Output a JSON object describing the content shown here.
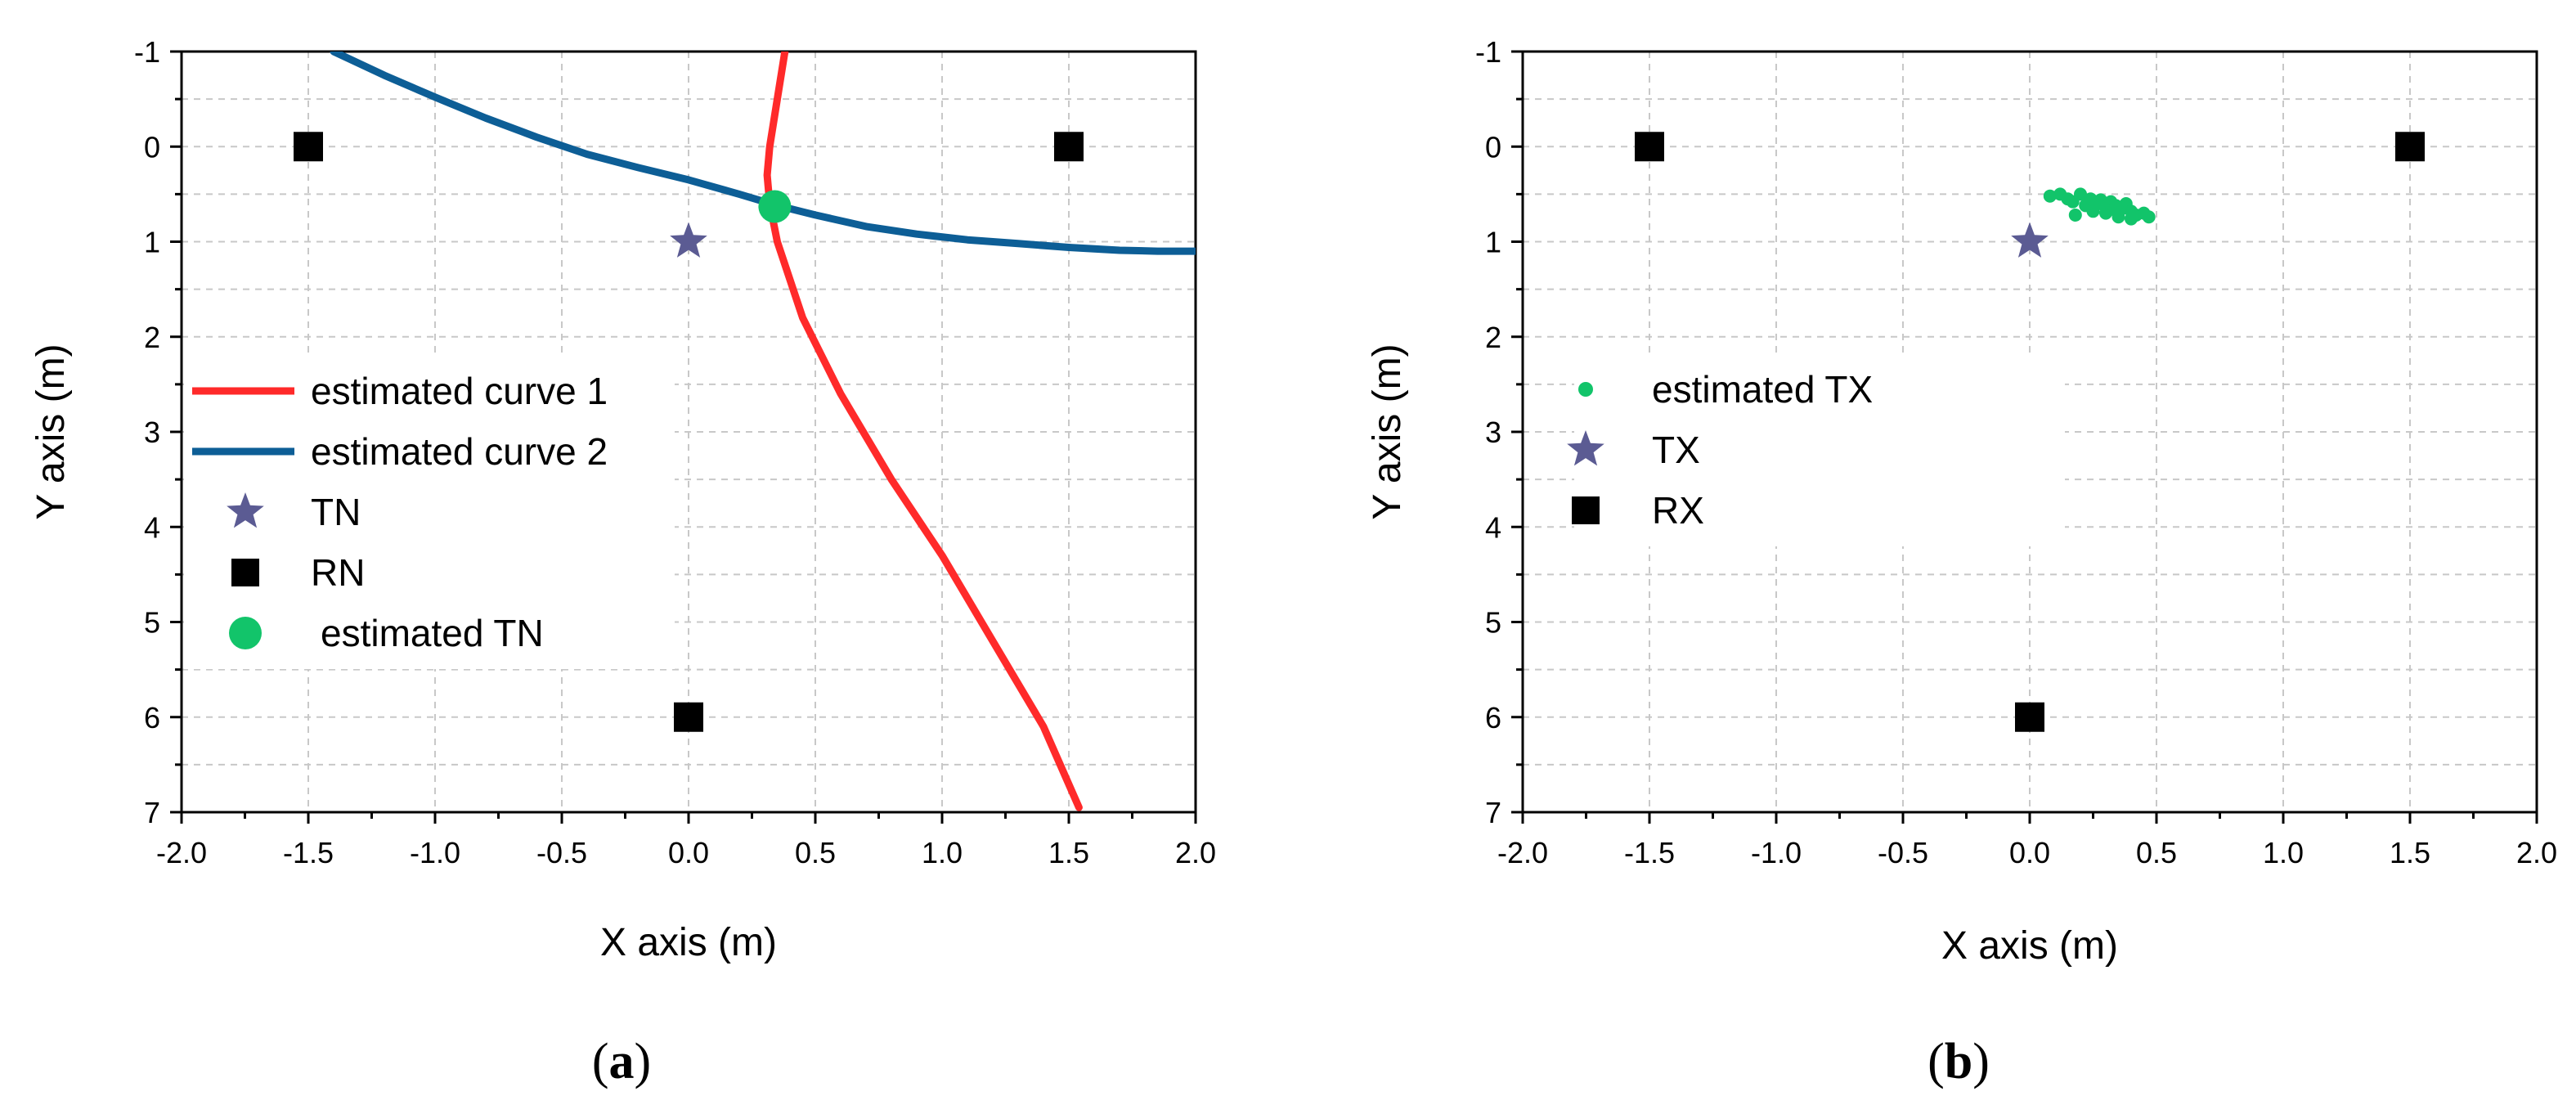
{
  "chart_data": [
    {
      "type": "line",
      "panel_label": "a",
      "xlabel": "X axis (m)",
      "ylabel": "Y axis (m)",
      "xlim": [
        -2.0,
        2.0
      ],
      "ylim": [
        -1,
        7
      ],
      "y_inverted": true,
      "x_ticks": [
        "-2.0",
        "-1.5",
        "-1.0",
        "-0.5",
        "0.0",
        "0.5",
        "1.0",
        "1.5",
        "2.0"
      ],
      "y_ticks": [
        "-1",
        "0",
        "1",
        "2",
        "3",
        "4",
        "5",
        "6",
        "7"
      ],
      "grid": true,
      "legend_position": "left",
      "series": [
        {
          "name": "estimated curve 1",
          "kind": "line",
          "color": "#ff2a2a",
          "x": [
            0.38,
            0.35,
            0.32,
            0.31,
            0.32,
            0.35,
            0.45,
            0.6,
            0.8,
            1.0,
            1.2,
            1.4,
            1.54
          ],
          "y": [
            -1.0,
            -0.5,
            0.0,
            0.3,
            0.6,
            1.0,
            1.8,
            2.6,
            3.5,
            4.3,
            5.2,
            6.1,
            6.95
          ]
        },
        {
          "name": "estimated curve 2",
          "kind": "line",
          "color": "#0d5e96",
          "x": [
            -1.4,
            -1.2,
            -1.0,
            -0.8,
            -0.6,
            -0.4,
            -0.2,
            0.0,
            0.2,
            0.35,
            0.5,
            0.7,
            0.9,
            1.1,
            1.3,
            1.5,
            1.7,
            1.85,
            2.0
          ],
          "y": [
            -1.0,
            -0.75,
            -0.52,
            -0.3,
            -0.1,
            0.08,
            0.22,
            0.35,
            0.5,
            0.62,
            0.72,
            0.84,
            0.92,
            0.98,
            1.02,
            1.06,
            1.09,
            1.1,
            1.1
          ]
        },
        {
          "name": "TN",
          "kind": "star",
          "color": "#5b5b93",
          "x": [
            0.0
          ],
          "y": [
            1.0
          ]
        },
        {
          "name": "RN",
          "kind": "square",
          "color": "#000000",
          "x": [
            -1.5,
            1.5,
            0.0
          ],
          "y": [
            0.0,
            0.0,
            6.0
          ]
        },
        {
          "name": "estimated TN",
          "kind": "circle",
          "color": "#12c46a",
          "x": [
            0.34
          ],
          "y": [
            0.63
          ]
        }
      ]
    },
    {
      "type": "scatter",
      "panel_label": "b",
      "xlabel": "X axis (m)",
      "ylabel": "Y axis (m)",
      "xlim": [
        -2.0,
        2.0
      ],
      "ylim": [
        -1,
        7
      ],
      "y_inverted": true,
      "x_ticks": [
        "-2.0",
        "-1.5",
        "-1.0",
        "-0.5",
        "0.0",
        "0.5",
        "1.0",
        "1.5",
        "2.0"
      ],
      "y_ticks": [
        "-1",
        "0",
        "1",
        "2",
        "3",
        "4",
        "5",
        "6",
        "7"
      ],
      "grid": true,
      "legend_position": "left",
      "series": [
        {
          "name": "estimated TX",
          "kind": "dot",
          "color": "#12c46a",
          "x": [
            0.08,
            0.12,
            0.15,
            0.17,
            0.2,
            0.22,
            0.24,
            0.26,
            0.28,
            0.3,
            0.32,
            0.34,
            0.36,
            0.38,
            0.4,
            0.42,
            0.45,
            0.47,
            0.18,
            0.25,
            0.3,
            0.35,
            0.4,
            0.28,
            0.33
          ],
          "y": [
            0.52,
            0.5,
            0.55,
            0.58,
            0.5,
            0.62,
            0.55,
            0.6,
            0.56,
            0.64,
            0.58,
            0.62,
            0.66,
            0.6,
            0.68,
            0.72,
            0.7,
            0.74,
            0.72,
            0.68,
            0.7,
            0.74,
            0.76,
            0.6,
            0.66
          ]
        },
        {
          "name": "TX",
          "kind": "star",
          "color": "#5b5b93",
          "x": [
            0.0
          ],
          "y": [
            1.0
          ]
        },
        {
          "name": "RX",
          "kind": "square",
          "color": "#000000",
          "x": [
            -1.5,
            1.5,
            0.0
          ],
          "y": [
            0.0,
            0.0,
            6.0
          ]
        }
      ]
    }
  ]
}
